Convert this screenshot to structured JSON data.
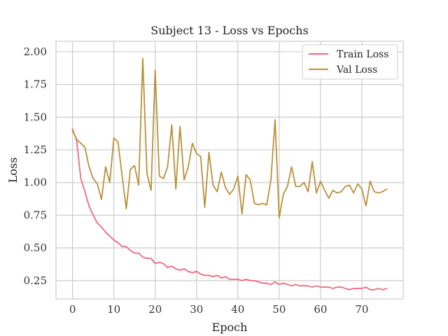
{
  "chart_data": {
    "type": "line",
    "title": "Subject 13 - Loss vs Epochs",
    "xlabel": "Epoch",
    "ylabel": "Loss",
    "xlim": [
      -4,
      80
    ],
    "ylim": [
      0.11,
      2.08
    ],
    "xticks": [
      0,
      10,
      20,
      30,
      40,
      50,
      60,
      70
    ],
    "xtick_labels": [
      "0",
      "10",
      "20",
      "30",
      "40",
      "50",
      "60",
      "70"
    ],
    "yticks": [
      0.25,
      0.5,
      0.75,
      1.0,
      1.25,
      1.5,
      1.75,
      2.0
    ],
    "ytick_labels": [
      "0.25",
      "0.50",
      "0.75",
      "1.00",
      "1.25",
      "1.50",
      "1.75",
      "2.00"
    ],
    "grid": true,
    "legend_position": "upper right",
    "x": [
      0,
      1,
      2,
      3,
      4,
      5,
      6,
      7,
      8,
      9,
      10,
      11,
      12,
      13,
      14,
      15,
      16,
      17,
      18,
      19,
      20,
      21,
      22,
      23,
      24,
      25,
      26,
      27,
      28,
      29,
      30,
      31,
      32,
      33,
      34,
      35,
      36,
      37,
      38,
      39,
      40,
      41,
      42,
      43,
      44,
      45,
      46,
      47,
      48,
      49,
      50,
      51,
      52,
      53,
      54,
      55,
      56,
      57,
      58,
      59,
      60,
      61,
      62,
      63,
      64,
      65,
      66,
      67,
      68,
      69,
      70,
      71,
      72,
      73,
      74,
      75,
      76
    ],
    "series": [
      {
        "name": "Train Loss",
        "color": "#f0687f",
        "values": [
          1.41,
          1.32,
          1.03,
          0.93,
          0.82,
          0.75,
          0.69,
          0.66,
          0.62,
          0.59,
          0.56,
          0.54,
          0.51,
          0.51,
          0.48,
          0.46,
          0.46,
          0.43,
          0.42,
          0.42,
          0.38,
          0.39,
          0.38,
          0.35,
          0.36,
          0.34,
          0.33,
          0.34,
          0.32,
          0.31,
          0.32,
          0.3,
          0.29,
          0.29,
          0.28,
          0.29,
          0.27,
          0.28,
          0.26,
          0.26,
          0.26,
          0.25,
          0.26,
          0.25,
          0.25,
          0.24,
          0.23,
          0.23,
          0.22,
          0.24,
          0.22,
          0.23,
          0.22,
          0.21,
          0.22,
          0.21,
          0.21,
          0.21,
          0.2,
          0.21,
          0.2,
          0.2,
          0.2,
          0.19,
          0.2,
          0.2,
          0.19,
          0.18,
          0.19,
          0.19,
          0.19,
          0.2,
          0.18,
          0.18,
          0.19,
          0.18,
          0.19
        ]
      },
      {
        "name": "Val Loss",
        "color": "#b8923a",
        "values": [
          1.4,
          1.33,
          1.3,
          1.27,
          1.12,
          1.03,
          0.99,
          0.87,
          1.12,
          1.0,
          1.34,
          1.31,
          1.05,
          0.8,
          1.1,
          1.13,
          0.98,
          1.95,
          1.07,
          0.94,
          1.86,
          1.05,
          1.03,
          1.12,
          1.44,
          0.95,
          1.43,
          1.02,
          1.12,
          1.3,
          1.22,
          1.2,
          0.81,
          1.23,
          0.98,
          0.93,
          1.08,
          0.96,
          0.91,
          0.95,
          1.05,
          0.76,
          1.06,
          1.02,
          0.84,
          0.83,
          0.84,
          0.83,
          1.02,
          1.48,
          0.73,
          0.91,
          0.97,
          1.12,
          0.97,
          0.97,
          1.0,
          0.93,
          1.16,
          0.92,
          1.01,
          0.94,
          0.88,
          0.94,
          0.92,
          0.93,
          0.97,
          0.98,
          0.92,
          0.99,
          0.95,
          0.82,
          1.01,
          0.93,
          0.92,
          0.93,
          0.95
        ]
      }
    ]
  }
}
